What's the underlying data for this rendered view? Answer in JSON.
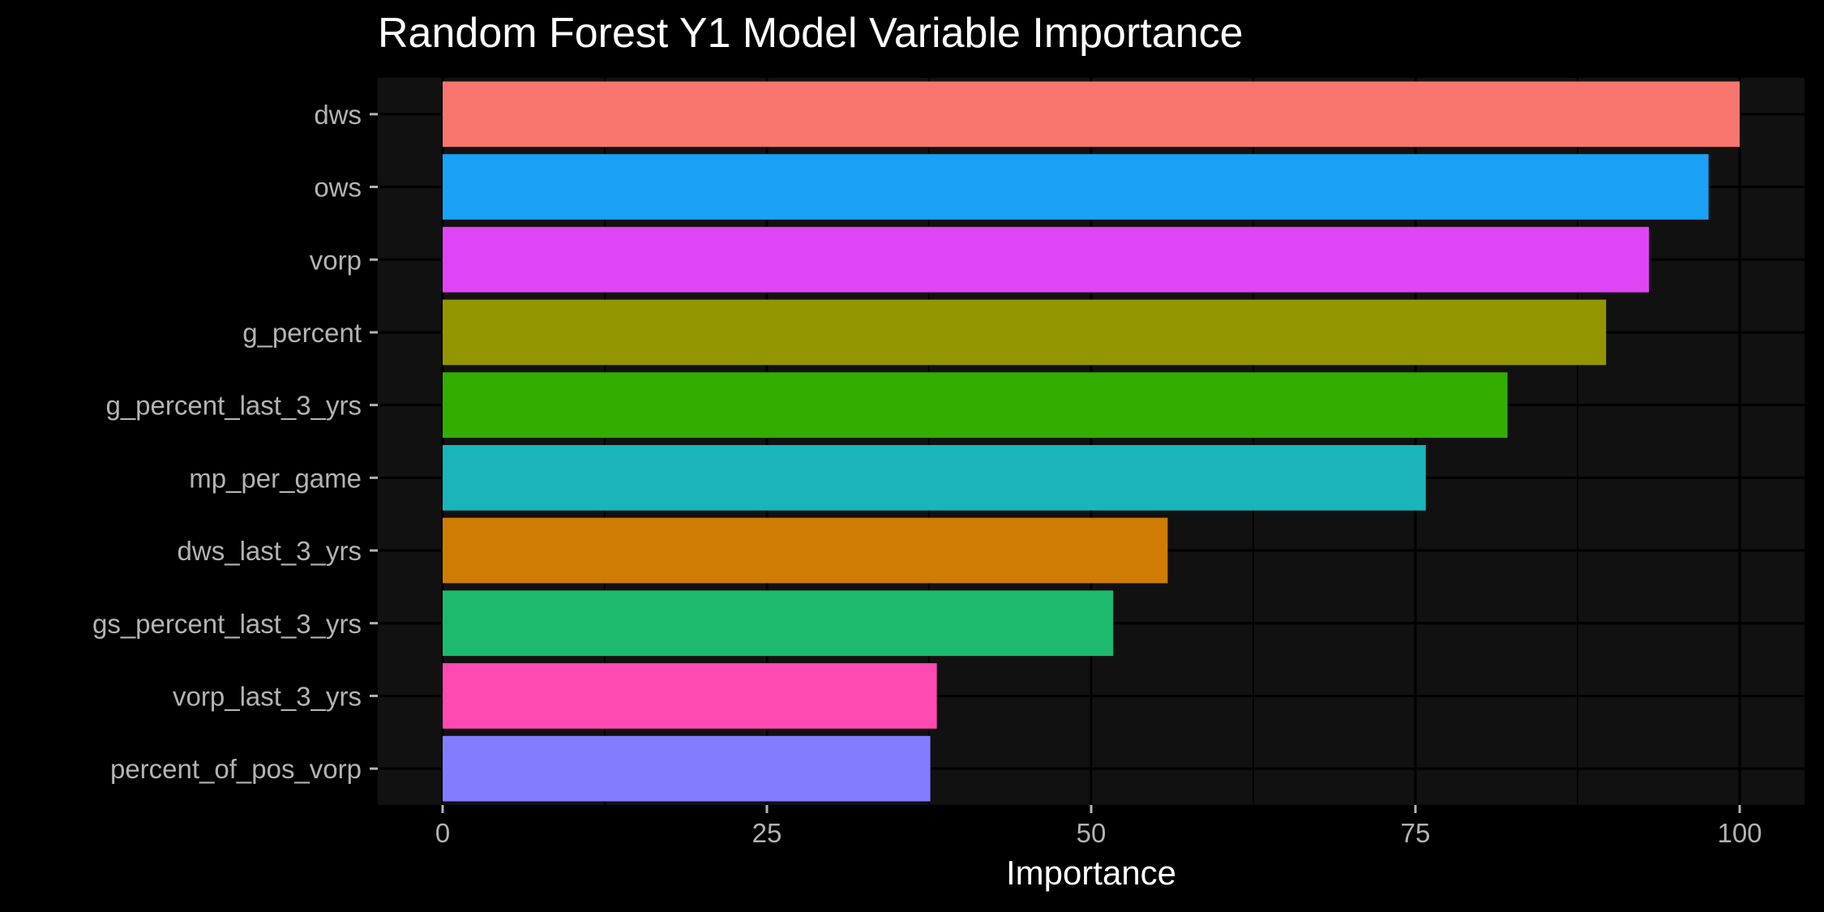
{
  "chart_data": {
    "type": "bar",
    "orientation": "horizontal",
    "title": "Random Forest Y1 Model Variable Importance",
    "xlabel": "Importance",
    "ylabel": "",
    "xlim": [
      -5,
      105
    ],
    "xticks": [
      0,
      25,
      50,
      75,
      100
    ],
    "grid": true,
    "legend": "none",
    "categories": [
      "dws",
      "ows",
      "vorp",
      "g_percent",
      "g_percent_last_3_yrs",
      "mp_per_game",
      "dws_last_3_yrs",
      "gs_percent_last_3_yrs",
      "vorp_last_3_yrs",
      "percent_of_pos_vorp"
    ],
    "values": [
      100,
      97.6,
      93.0,
      89.7,
      82.1,
      75.8,
      55.9,
      51.7,
      38.1,
      37.6
    ],
    "colors": [
      "#F8766D",
      "#1AA1F5",
      "#E045F5",
      "#939600",
      "#33AD00",
      "#19B5BB",
      "#CF7C04",
      "#1DBA6E",
      "#FF4AB2",
      "#827DFF"
    ],
    "panel_background": "#111111",
    "grid_color": "#000000"
  }
}
